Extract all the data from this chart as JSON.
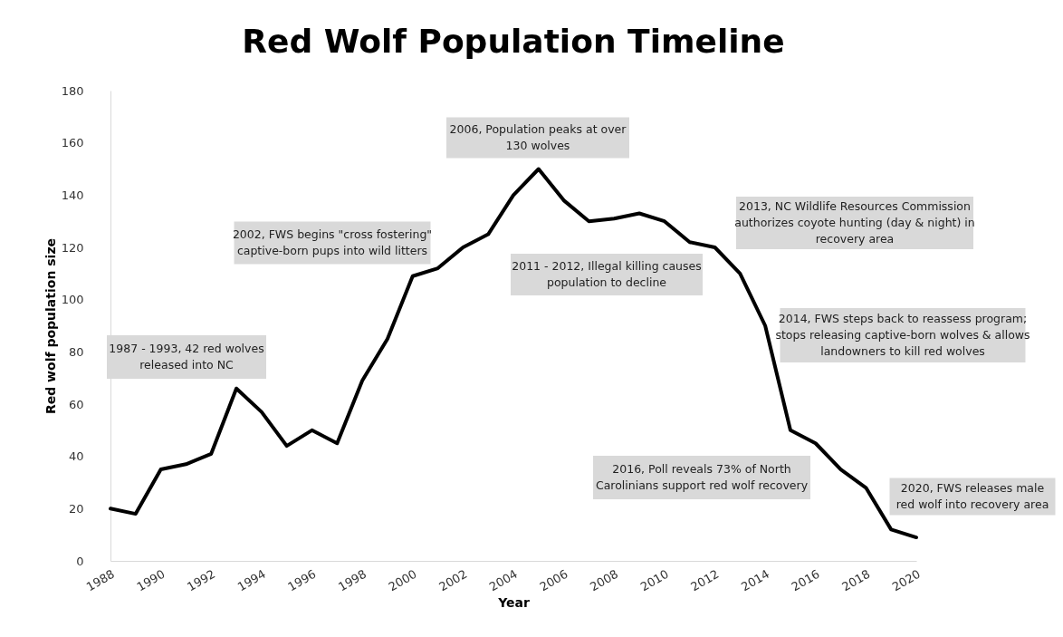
{
  "chart_data": {
    "type": "line",
    "title": "Red Wolf Population Timeline",
    "xlabel": "Year",
    "ylabel": "Red wolf population size",
    "x": [
      1988,
      1989,
      1990,
      1991,
      1992,
      1993,
      1994,
      1995,
      1996,
      1997,
      1998,
      1999,
      2000,
      2001,
      2002,
      2003,
      2004,
      2005,
      2006,
      2007,
      2008,
      2009,
      2010,
      2011,
      2012,
      2013,
      2014,
      2015,
      2016,
      2017,
      2018,
      2019,
      2020
    ],
    "series": [
      {
        "color": "#000000",
        "values": [
          20,
          18,
          35,
          37,
          41,
          66,
          57,
          44,
          50,
          45,
          69,
          85,
          109,
          112,
          120,
          125,
          140,
          150,
          138,
          130,
          131,
          133,
          130,
          122,
          120,
          110,
          90,
          50,
          45,
          35,
          28,
          12,
          9
        ]
      }
    ],
    "xlim": [
      1988,
      2020
    ],
    "xticks": [
      1988,
      1990,
      1992,
      1994,
      1996,
      1998,
      2000,
      2002,
      2004,
      2006,
      2008,
      2010,
      2012,
      2014,
      2016,
      2018,
      2020
    ],
    "ylim": [
      0,
      180
    ],
    "yticks": [
      0,
      20,
      40,
      60,
      80,
      100,
      120,
      140,
      160,
      180
    ],
    "grid": false,
    "marker": "none",
    "line_style": "solid",
    "annotations": [
      "1987 - 1993, 42 red wolves\nreleased into NC",
      "2002, FWS begins \"cross fostering\"\ncaptive-born pups into wild litters",
      "2006,  Population peaks at over\n130 wolves",
      "2011 - 2012, Illegal killing causes\npopulation to decline",
      "2013,  NC Wildlife Resources Commission\nauthorizes coyote hunting (day & night) in\nrecovery area",
      "2014,  FWS steps back to reassess program;\nstops releasing captive-born wolves & allows\nlandowners to kill red wolves",
      "2016, Poll reveals 73% of North\nCarolinians support red wolf recovery",
      "2020, FWS releases male\nred wolf into recovery area"
    ]
  }
}
